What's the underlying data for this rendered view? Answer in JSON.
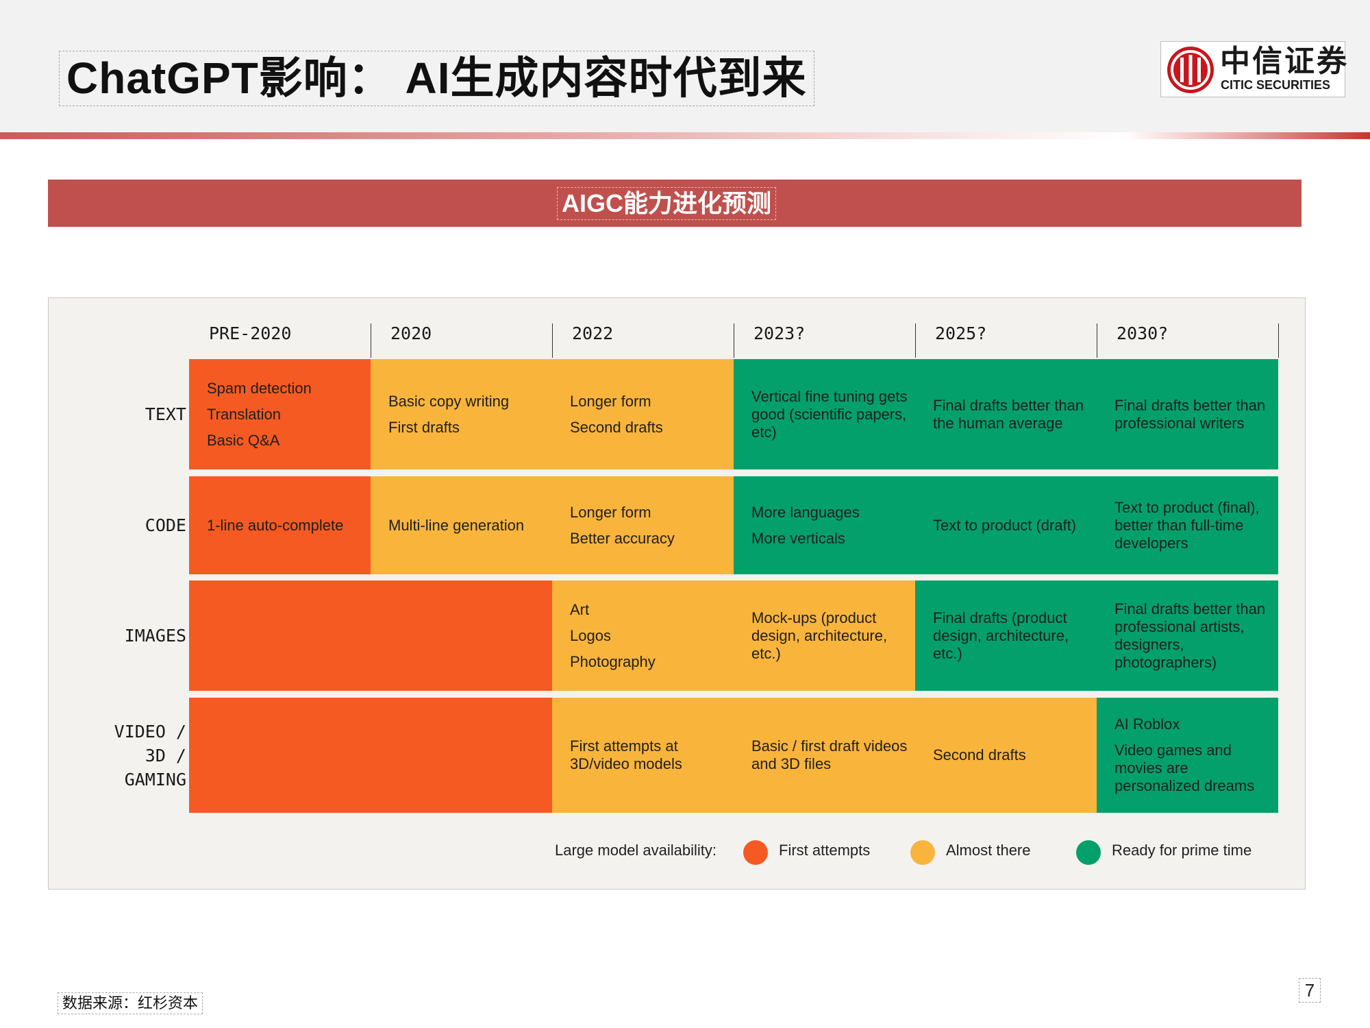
{
  "header": {
    "title": "ChatGPT影响： AI生成内容时代到来",
    "logo_cn": "中信证券",
    "logo_en": "CITIC SECURITIES"
  },
  "section_title": "AIGC能力进化预测",
  "figure": {
    "columns": [
      "PRE-2020",
      "2020",
      "2022",
      "2023?",
      "2025?",
      "2030?"
    ],
    "rows": [
      {
        "label": [
          "TEXT"
        ],
        "cells": [
          {
            "status": "first_attempts",
            "lines": [
              "Spam detection",
              "Translation",
              "Basic Q&A"
            ]
          },
          {
            "status": "almost_there",
            "lines": [
              "Basic copy writing",
              "First drafts"
            ]
          },
          {
            "status": "almost_there",
            "lines": [
              "Longer form",
              "Second drafts"
            ]
          },
          {
            "status": "ready",
            "text": "Vertical fine tuning gets good (scientific papers, etc)"
          },
          {
            "status": "ready",
            "text": "Final drafts better than the human average"
          },
          {
            "status": "ready",
            "text": "Final drafts better than professional writers"
          }
        ]
      },
      {
        "label": [
          "CODE"
        ],
        "cells": [
          {
            "status": "first_attempts",
            "lines": [
              "1-line auto-complete"
            ]
          },
          {
            "status": "almost_there",
            "lines": [
              "Multi-line generation"
            ]
          },
          {
            "status": "almost_there",
            "lines": [
              "Longer form",
              "Better accuracy"
            ]
          },
          {
            "status": "ready",
            "lines": [
              "More languages",
              "More verticals"
            ]
          },
          {
            "status": "ready",
            "lines": [
              "Text to product (draft)"
            ]
          },
          {
            "status": "ready",
            "text": "Text to product (final), better than full-time developers"
          }
        ]
      },
      {
        "label": [
          "IMAGES"
        ],
        "cells": [
          {
            "status": "first_attempts",
            "lines": []
          },
          {
            "status": "first_attempts",
            "lines": []
          },
          {
            "status": "almost_there",
            "lines": [
              "Art",
              "Logos",
              "Photography"
            ]
          },
          {
            "status": "almost_there",
            "text": "Mock-ups (product design, architecture, etc.)"
          },
          {
            "status": "ready",
            "text": "Final drafts (product design, architecture, etc.)"
          },
          {
            "status": "ready",
            "text": "Final drafts better than professional artists, designers, photographers)"
          }
        ]
      },
      {
        "label": [
          "VIDEO /",
          "3D /",
          "GAMING"
        ],
        "cells": [
          {
            "status": "first_attempts",
            "lines": []
          },
          {
            "status": "first_attempts",
            "lines": []
          },
          {
            "status": "almost_there",
            "text": "First attempts at 3D/video models"
          },
          {
            "status": "almost_there",
            "text": "Basic / first draft videos and 3D files"
          },
          {
            "status": "almost_there",
            "lines": [
              "Second drafts"
            ]
          },
          {
            "status": "ready",
            "text": "AI Roblox",
            "text2": "Video games and movies are personalized dreams"
          }
        ]
      }
    ],
    "legend": {
      "label": "Large model availability:",
      "items": [
        {
          "key": "first_attempts",
          "label": "First attempts",
          "color": "#f55a22"
        },
        {
          "key": "almost_there",
          "label": "Almost there",
          "color": "#f9b43c"
        },
        {
          "key": "ready",
          "label": "Ready for prime time",
          "color": "#03a06c"
        }
      ]
    }
  },
  "footer": {
    "source": "数据来源：红杉资本",
    "page_number": "7"
  }
}
